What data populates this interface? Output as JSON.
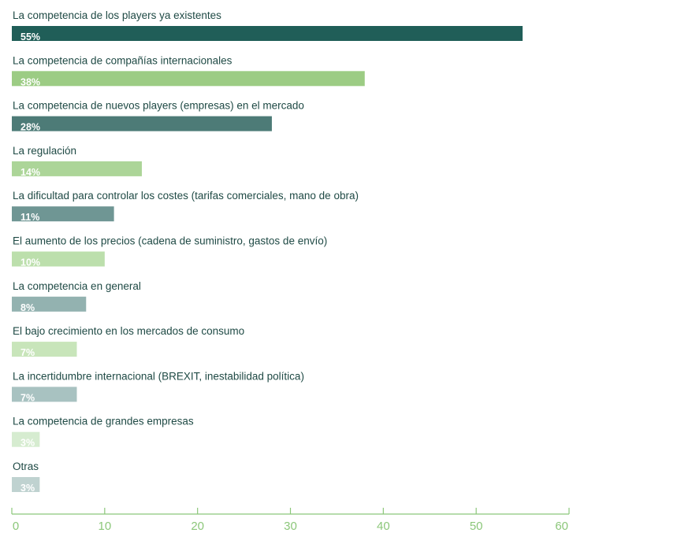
{
  "chart_data": {
    "type": "bar",
    "orientation": "horizontal",
    "categories": [
      "La competencia de los players ya existentes",
      "La competencia de compañías internacionales",
      "La competencia de nuevos players (empresas) en el mercado",
      "La regulación",
      "La dificultad para controlar los costes (tarifas comerciales, mano de obra)",
      "El aumento de los precios (cadena de suministro, gastos de envío)",
      "La competencia en general",
      "El bajo crecimiento en los mercados de consumo",
      "La incertidumbre internacional (BREXIT, inestabilidad política)",
      "La competencia de grandes empresas",
      "Otras"
    ],
    "values": [
      55,
      38,
      28,
      14,
      11,
      10,
      8,
      7,
      7,
      3,
      3
    ],
    "value_labels": [
      "55%",
      "38%",
      "28%",
      "14%",
      "11%",
      "10%",
      "8%",
      "7%",
      "7%",
      "3%",
      "3%"
    ],
    "colors": [
      "#205e58",
      "#9ccc84",
      "#4d7b77",
      "#acd598",
      "#6f9694",
      "#bcdfac",
      "#93b2b0",
      "#c8e5ba",
      "#a8c2c1",
      "#d6ecd0",
      "#bfd2d0"
    ],
    "xlim": [
      0,
      60
    ],
    "xticks": [
      0,
      10,
      20,
      30,
      40,
      50,
      60
    ],
    "axis_color": "#8cc77a",
    "title": "",
    "xlabel": "",
    "ylabel": "",
    "grid": false,
    "legend": false
  }
}
